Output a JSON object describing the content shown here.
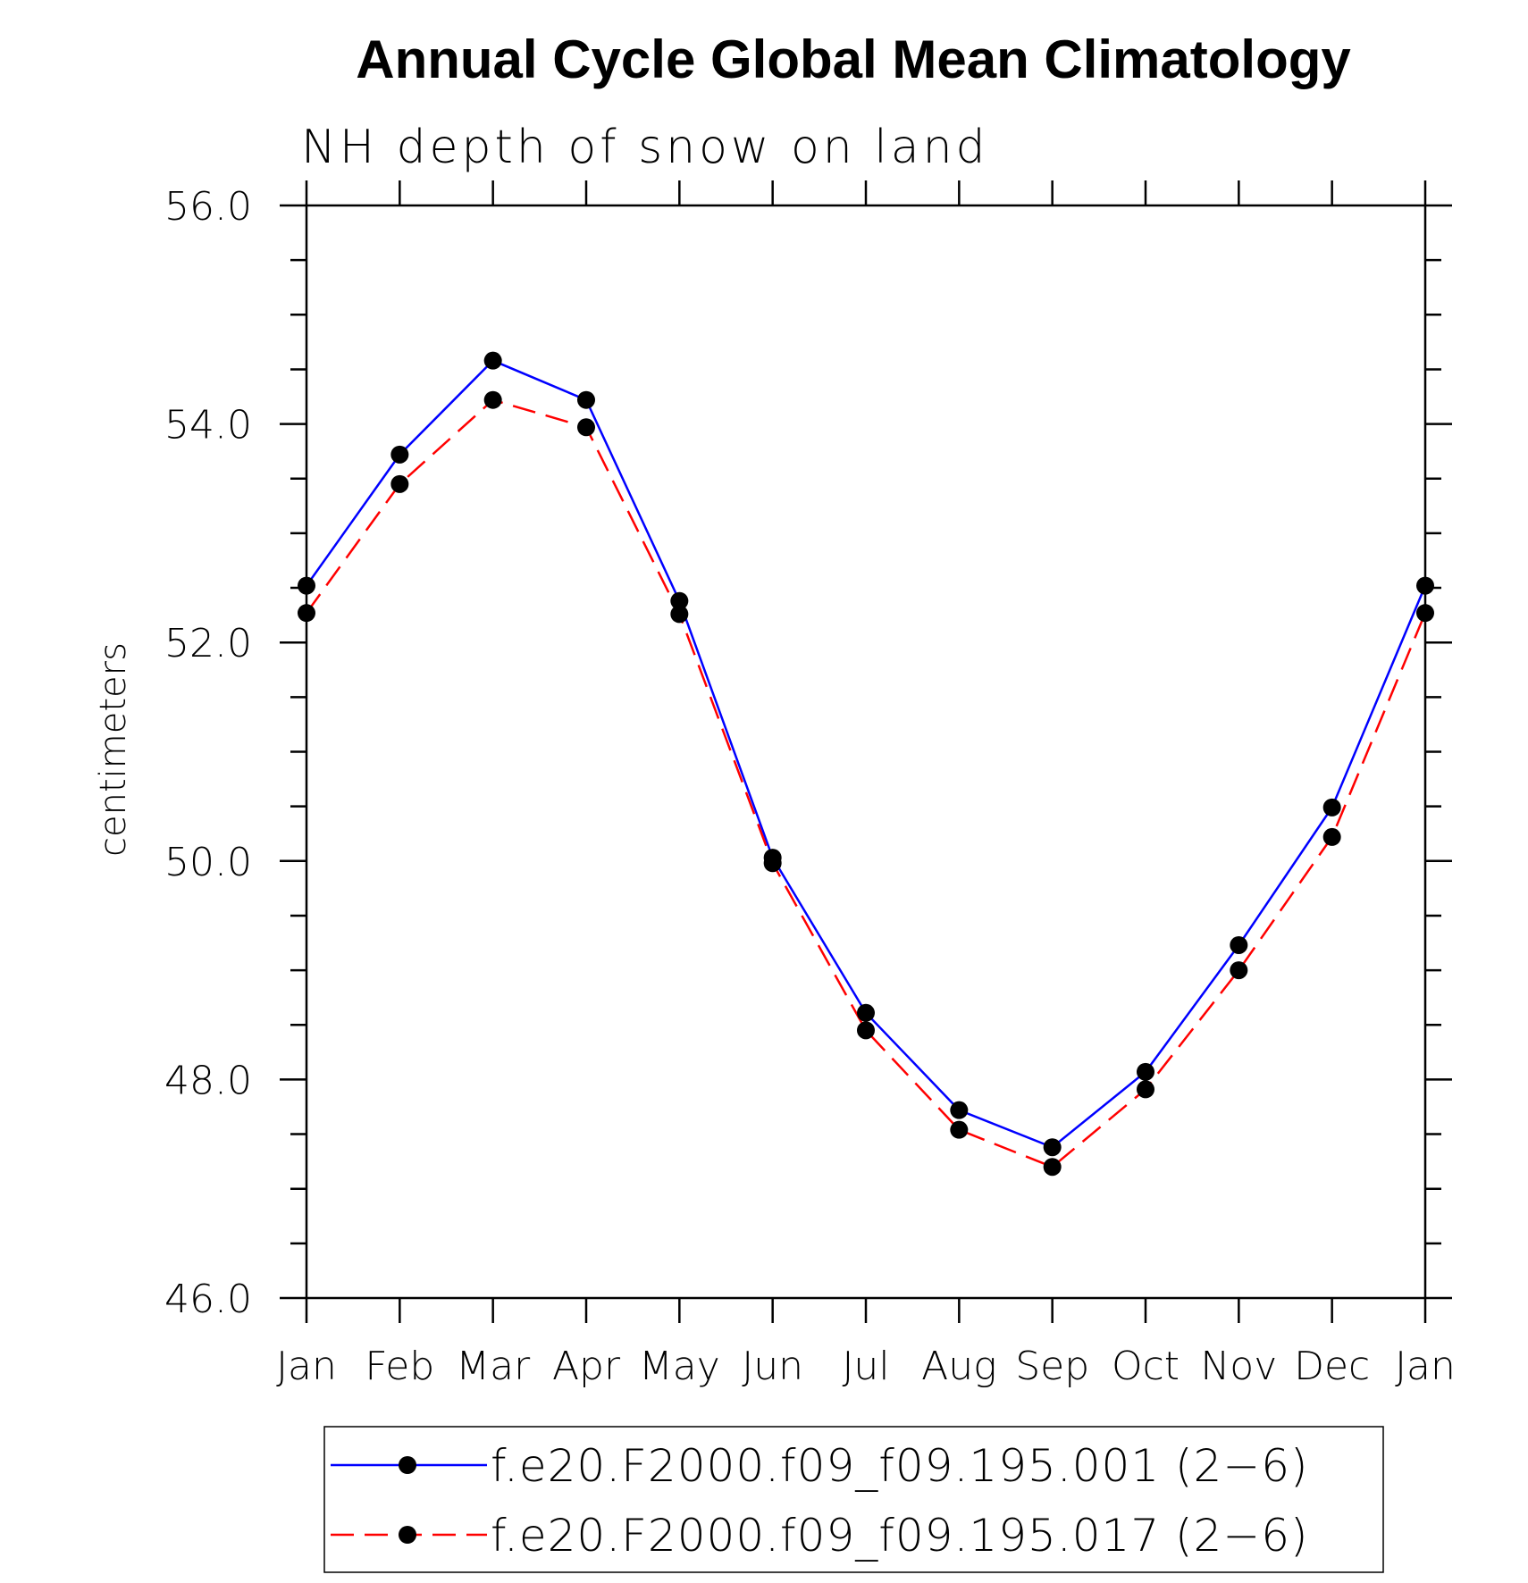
{
  "chart_data": {
    "type": "line",
    "title": "Annual Cycle Global Mean Climatology",
    "subtitle": "NH depth of snow on land",
    "ylabel": "centimeters",
    "xlabel": "",
    "categories": [
      "Jan",
      "Feb",
      "Mar",
      "Apr",
      "May",
      "Jun",
      "Jul",
      "Aug",
      "Sep",
      "Oct",
      "Nov",
      "Dec",
      "Jan"
    ],
    "ylim": [
      46.0,
      56.0
    ],
    "yticks": [
      "46.0",
      "48.0",
      "50.0",
      "52.0",
      "54.0",
      "56.0"
    ],
    "grid": false,
    "legend_position": "bottom",
    "series": [
      {
        "name": "f.e20.F2000.f09_f09.195.001 (2−6)",
        "color": "#0000ff",
        "line_style": "solid",
        "marker": "filled-circle",
        "values": [
          52.52,
          53.72,
          54.58,
          54.22,
          52.38,
          50.03,
          48.61,
          47.72,
          47.38,
          48.07,
          49.23,
          50.49,
          52.52
        ]
      },
      {
        "name": "f.e20.F2000.f09_f09.195.017 (2−6)",
        "color": "#ff0000",
        "line_style": "dashed",
        "marker": "filled-circle",
        "values": [
          52.27,
          53.45,
          54.22,
          53.97,
          52.26,
          49.98,
          48.45,
          47.54,
          47.2,
          47.91,
          49.0,
          50.22,
          52.27
        ]
      }
    ]
  }
}
